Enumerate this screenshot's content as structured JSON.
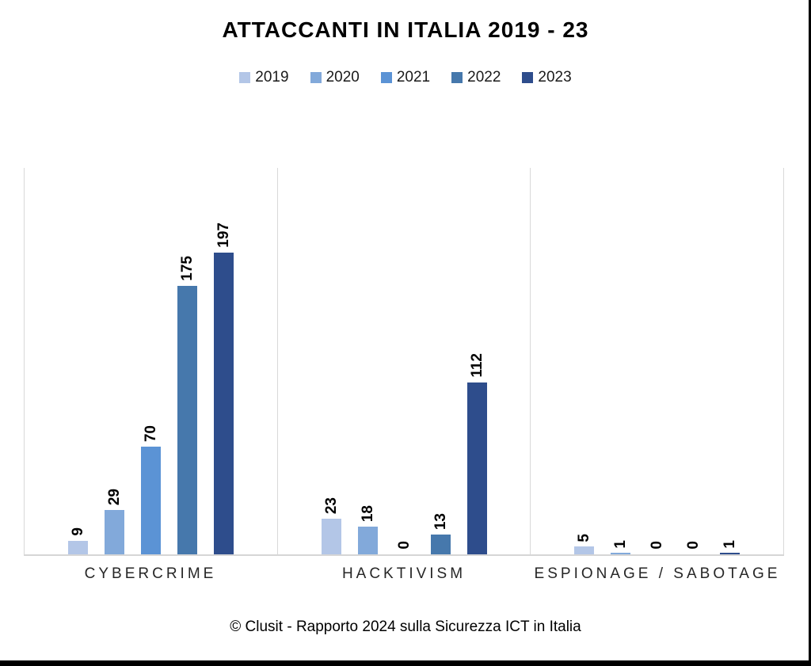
{
  "title": "ATTACCANTI IN ITALIA 2019 - 23",
  "footer": "© Clusit - Rapporto 2024 sulla Sicurezza ICT in Italia",
  "chart_data": {
    "type": "bar",
    "title": "ATTACCANTI IN ITALIA 2019 - 23",
    "categories": [
      "CYBERCRIME",
      "HACKTIVISM",
      "ESPIONAGE / SABOTAGE"
    ],
    "series": [
      {
        "name": "2019",
        "color": "#b3c6e7",
        "values": [
          9,
          23,
          5
        ]
      },
      {
        "name": "2020",
        "color": "#82a9da",
        "values": [
          29,
          18,
          1
        ]
      },
      {
        "name": "2021",
        "color": "#5b93d5",
        "values": [
          70,
          0,
          0
        ]
      },
      {
        "name": "2022",
        "color": "#4678ac",
        "values": [
          175,
          13,
          0
        ]
      },
      {
        "name": "2023",
        "color": "#2e4d8c",
        "values": [
          197,
          112,
          1
        ]
      }
    ],
    "xlabel": "",
    "ylabel": "",
    "ylim": [
      0,
      252
    ],
    "grid": false,
    "y_axis_visible": false,
    "data_labels": true,
    "data_label_rotation": -90,
    "legend_position": "top",
    "legend_entries": [
      "2019",
      "2020",
      "2021",
      "2022",
      "2023"
    ],
    "source_note": "© Clusit - Rapporto 2024 sulla Sicurezza ICT in Italia"
  }
}
